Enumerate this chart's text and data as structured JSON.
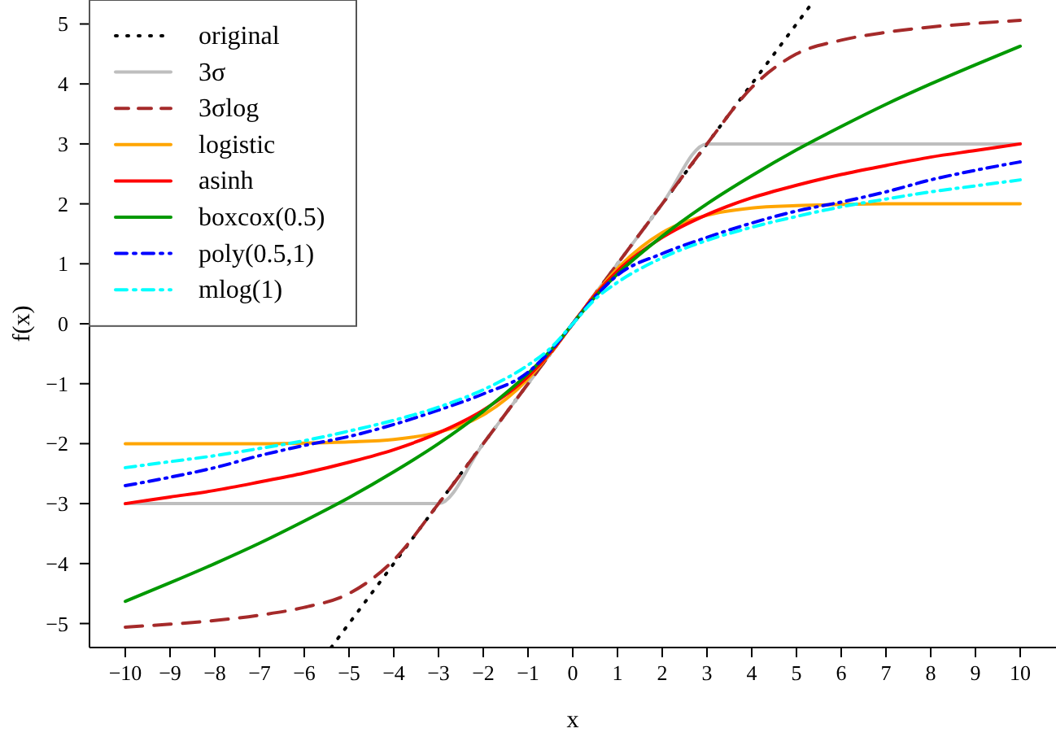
{
  "chart_data": {
    "type": "line",
    "xlabel": "x",
    "ylabel": "f(x)",
    "x": [
      -10,
      -9,
      -8,
      -7,
      -6,
      -5,
      -4,
      -3,
      -2,
      -1,
      -0.5,
      0,
      0.5,
      1,
      2,
      3,
      4,
      5,
      6,
      7,
      8,
      9,
      10
    ],
    "xlim": [
      -10.8,
      10.8
    ],
    "ylim": [
      -5.4,
      5.4
    ],
    "xticks": [
      -10,
      -9,
      -8,
      -7,
      -6,
      -5,
      -4,
      -3,
      -2,
      -1,
      0,
      1,
      2,
      3,
      4,
      5,
      6,
      7,
      8,
      9,
      10
    ],
    "yticks": [
      -5,
      -4,
      -3,
      -2,
      -1,
      0,
      1,
      2,
      3,
      4,
      5
    ],
    "grid": false,
    "legend": "top left",
    "marker": "none",
    "series": [
      {
        "name": "original",
        "color": "#000000",
        "line_style": "dotted",
        "x": [
          -5.4,
          5.4
        ],
        "values": [
          -5.4,
          5.4
        ]
      },
      {
        "name": "3σ",
        "color": "#bebebe",
        "line_style": "solid",
        "values": [
          -3,
          -3,
          -3,
          -3,
          -3,
          -3,
          -3,
          -3,
          -2,
          -1,
          -0.5,
          0,
          0.5,
          1,
          2,
          3,
          3,
          3,
          3,
          3,
          3,
          3,
          3
        ]
      },
      {
        "name": "3σlog",
        "color": "#a52a2a",
        "line_style": "dashed",
        "values": [
          -5.06,
          -5.01,
          -4.95,
          -4.86,
          -4.73,
          -4.5,
          -3.94,
          -3,
          -2,
          -1,
          -0.5,
          0,
          0.5,
          1,
          2,
          3,
          3.94,
          4.5,
          4.73,
          4.86,
          4.95,
          5.01,
          5.06
        ]
      },
      {
        "name": "logistic",
        "color": "#ffa500",
        "line_style": "solid",
        "values": [
          -2,
          -2,
          -2,
          -2,
          -1.99,
          -1.97,
          -1.93,
          -1.81,
          -1.52,
          -0.92,
          -0.49,
          0,
          0.49,
          0.92,
          1.52,
          1.81,
          1.93,
          1.97,
          1.99,
          2,
          2,
          2,
          2
        ]
      },
      {
        "name": "asinh",
        "color": "#ff0000",
        "line_style": "solid",
        "values": [
          -3,
          -2.89,
          -2.78,
          -2.64,
          -2.49,
          -2.31,
          -2.1,
          -1.82,
          -1.44,
          -0.88,
          -0.48,
          0,
          0.48,
          0.88,
          1.44,
          1.82,
          2.1,
          2.31,
          2.49,
          2.64,
          2.78,
          2.89,
          3
        ]
      },
      {
        "name": "boxcox(0.5)",
        "color": "#009900",
        "line_style": "solid",
        "values": [
          -4.63,
          -4.32,
          -4,
          -3.66,
          -3.29,
          -2.9,
          -2.47,
          -2,
          -1.46,
          -0.83,
          -0.45,
          0,
          0.45,
          0.83,
          1.46,
          2,
          2.47,
          2.9,
          3.29,
          3.66,
          4,
          4.32,
          4.63
        ]
      },
      {
        "name": "poly(0.5,1)",
        "color": "#0000ff",
        "line_style": "dashdot",
        "values": [
          -2.7,
          -2.56,
          -2.4,
          -2.2,
          -2.03,
          -1.88,
          -1.68,
          -1.44,
          -1.17,
          -0.81,
          -0.45,
          0,
          0.45,
          0.81,
          1.17,
          1.44,
          1.68,
          1.88,
          2.03,
          2.2,
          2.4,
          2.56,
          2.7
        ]
      },
      {
        "name": "mlog(1)",
        "color": "#00ffff",
        "line_style": "dashdot",
        "values": [
          -2.4,
          -2.3,
          -2.2,
          -2.08,
          -1.95,
          -1.79,
          -1.61,
          -1.39,
          -1.1,
          -0.69,
          -0.41,
          0,
          0.41,
          0.69,
          1.1,
          1.39,
          1.61,
          1.79,
          1.95,
          2.08,
          2.2,
          2.3,
          2.4
        ]
      }
    ]
  }
}
